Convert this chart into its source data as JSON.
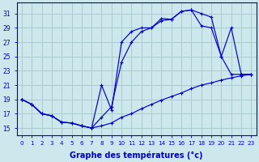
{
  "xlabel": "Graphe des températures (°c)",
  "bg_color": "#cce8ec",
  "grid_color": "#aacccc",
  "line_color": "#0000cc",
  "xlim": [
    -0.5,
    23.5
  ],
  "ylim": [
    14.0,
    32.5
  ],
  "yticks": [
    15,
    17,
    19,
    21,
    23,
    25,
    27,
    29,
    31
  ],
  "xticks": [
    0,
    1,
    2,
    3,
    4,
    5,
    6,
    7,
    8,
    9,
    10,
    11,
    12,
    13,
    14,
    15,
    16,
    17,
    18,
    19,
    20,
    21,
    22,
    23
  ],
  "curve1_x": [
    0,
    1,
    2,
    3,
    4,
    5,
    6,
    7,
    8,
    9,
    10,
    11,
    12,
    13,
    14,
    15,
    16,
    17,
    18,
    19,
    20,
    21,
    22,
    23
  ],
  "curve1_y": [
    19.0,
    18.3,
    17.0,
    16.7,
    15.8,
    15.7,
    15.3,
    15.0,
    21.0,
    17.5,
    27.0,
    28.5,
    29.0,
    29.0,
    30.3,
    30.2,
    31.3,
    31.5,
    31.0,
    30.5,
    25.0,
    29.0,
    22.5,
    22.5
  ],
  "curve2_x": [
    0,
    1,
    2,
    3,
    4,
    5,
    6,
    7,
    8,
    9,
    10,
    11,
    12,
    13,
    14,
    15,
    16,
    17,
    18,
    19,
    20,
    21,
    22,
    23
  ],
  "curve2_y": [
    19.0,
    18.3,
    17.0,
    16.7,
    15.8,
    15.7,
    15.3,
    15.0,
    16.5,
    18.0,
    24.2,
    27.0,
    28.5,
    29.0,
    30.0,
    30.2,
    31.3,
    31.5,
    29.3,
    29.0,
    25.0,
    22.5,
    22.5,
    22.5
  ],
  "curve3_x": [
    0,
    1,
    2,
    3,
    4,
    5,
    6,
    7,
    8,
    9,
    10,
    11,
    12,
    13,
    14,
    15,
    16,
    17,
    18,
    19,
    20,
    21,
    22,
    23
  ],
  "curve3_y": [
    19.0,
    18.3,
    17.0,
    16.7,
    15.8,
    15.7,
    15.3,
    15.0,
    15.3,
    15.7,
    16.5,
    17.0,
    17.7,
    18.3,
    18.9,
    19.4,
    19.9,
    20.5,
    21.0,
    21.3,
    21.7,
    22.0,
    22.3,
    22.5
  ]
}
